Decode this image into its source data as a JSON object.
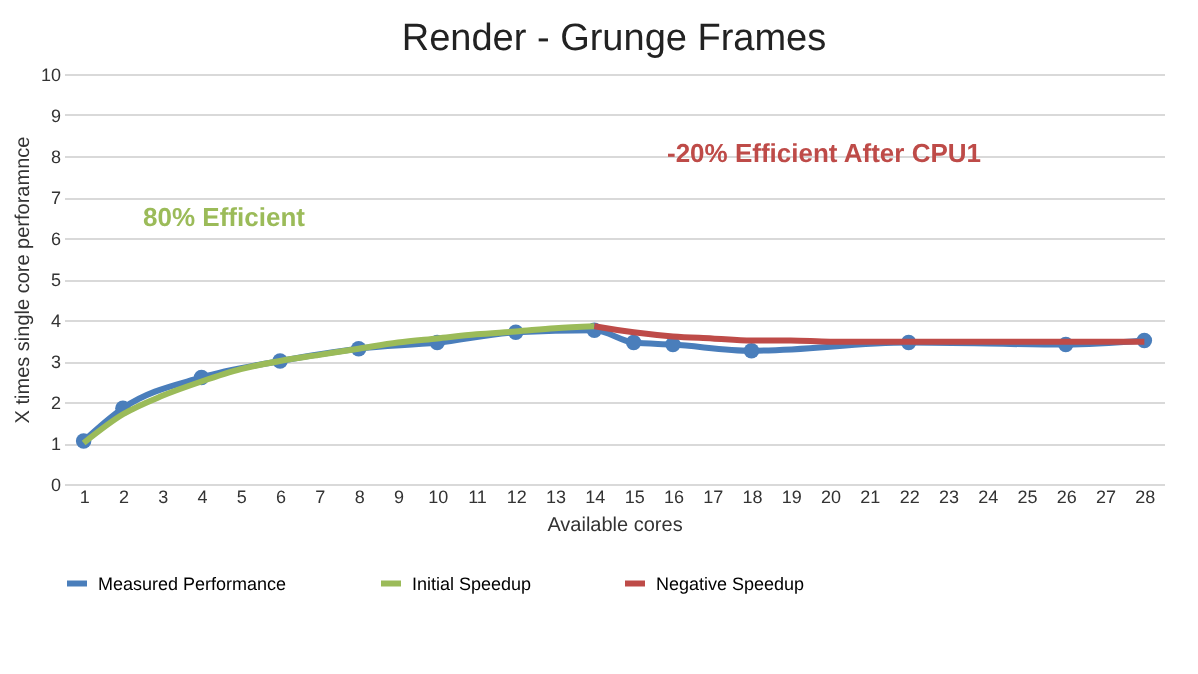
{
  "chart_data": {
    "type": "line",
    "title": "Render - Grunge Frames",
    "xlabel": "Available cores",
    "ylabel": "X times single core perforamnce",
    "xlim": [
      0.5,
      28.5
    ],
    "xticks": [
      1,
      2,
      3,
      4,
      5,
      6,
      7,
      8,
      9,
      10,
      11,
      12,
      13,
      14,
      15,
      16,
      17,
      18,
      19,
      20,
      21,
      22,
      23,
      24,
      25,
      26,
      27,
      28
    ],
    "ylim": [
      0,
      10
    ],
    "yticks": [
      0,
      1,
      2,
      3,
      4,
      5,
      6,
      7,
      8,
      9,
      10
    ],
    "grid": "y",
    "legend": "bottom",
    "series": [
      {
        "name": "Measured Performance",
        "color": "#4a7ebb",
        "marker": "circle",
        "x": [
          1,
          2,
          4,
          6,
          8,
          10,
          12,
          14,
          15,
          16,
          18,
          22,
          26,
          28
        ],
        "values": [
          1.05,
          1.85,
          2.6,
          3.0,
          3.3,
          3.45,
          3.7,
          3.75,
          3.45,
          3.4,
          3.25,
          3.45,
          3.4,
          3.5
        ]
      },
      {
        "name": "Initial Speedup",
        "color": "#9bbb59",
        "marker": "none",
        "x": [
          1,
          2,
          3,
          4,
          5,
          6,
          7,
          8,
          9,
          10,
          11,
          12,
          13,
          14
        ],
        "values": [
          1.0,
          1.7,
          2.15,
          2.5,
          2.8,
          3.0,
          3.15,
          3.3,
          3.45,
          3.55,
          3.65,
          3.72,
          3.8,
          3.85
        ]
      },
      {
        "name": "Negative Speedup",
        "color": "#be4b48",
        "marker": "none",
        "x": [
          14,
          15,
          16,
          17,
          18,
          19,
          20,
          22,
          24,
          26,
          28
        ],
        "values": [
          3.85,
          3.7,
          3.6,
          3.55,
          3.5,
          3.5,
          3.47,
          3.47,
          3.47,
          3.47,
          3.47
        ]
      }
    ],
    "annotations": [
      "80% Efficient",
      "-20% Efficient After CPU1"
    ]
  }
}
